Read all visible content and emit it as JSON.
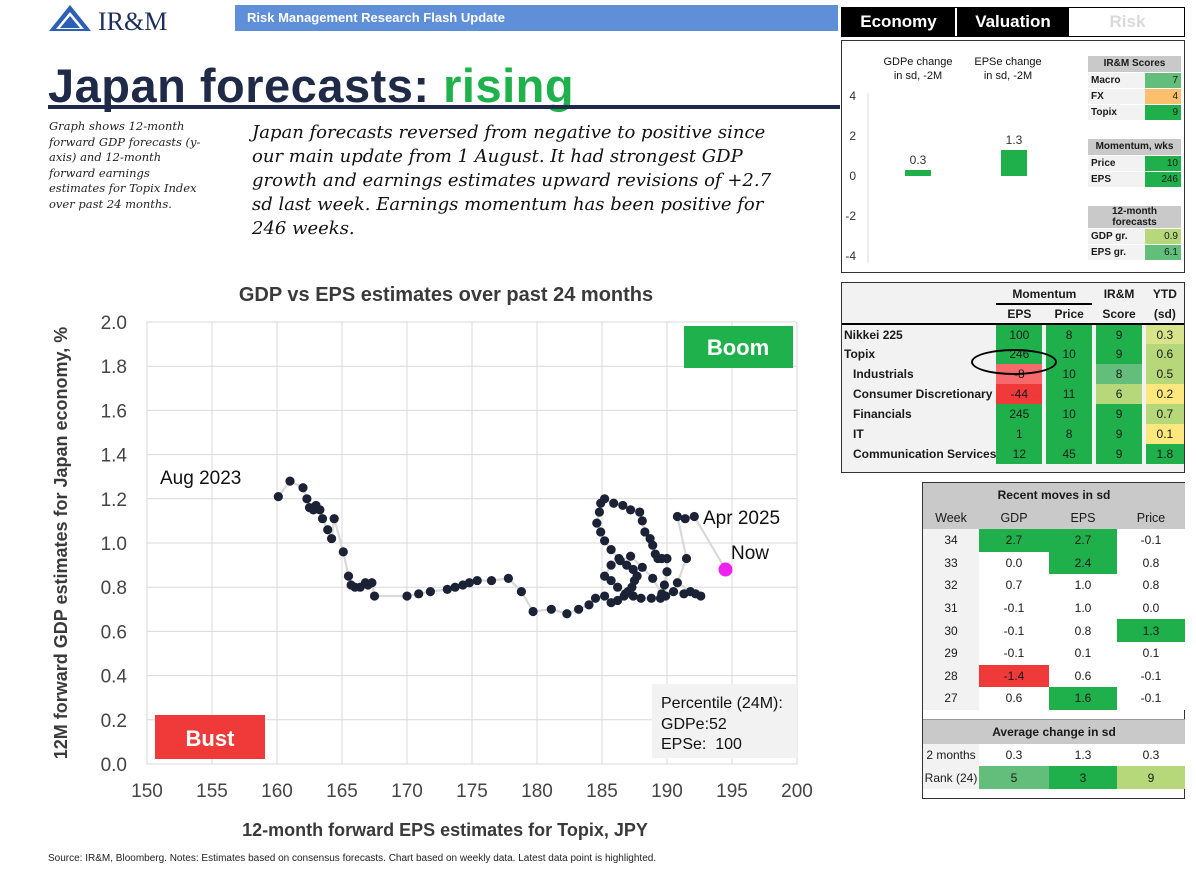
{
  "header": {
    "logo_text": "IR&M",
    "bar_text": "Risk Management Research Flash Update",
    "tabs": [
      "Economy",
      "Valuation",
      "Risk"
    ]
  },
  "title": {
    "main": "Japan forecasts: ",
    "highlight": "rising"
  },
  "side_note": "Graph shows 12-month forward GDP forecasts (y-axis) and 12-month forward earnings estimates for Topix Index over past 24 months.",
  "lead_text": "Japan forecasts reversed from negative to positive since our main update from 1 August. It had strongest GDP growth and earnings estimates upward revisions of +2.7 sd last week. Earnings momentum has been positive for 246 weeks.",
  "colors": {
    "navy": "#1f2a48",
    "green": "#1fb14b",
    "red": "#f03a3a",
    "dark_green": "#20b04b",
    "mid_green": "#63be7b",
    "light_green": "#b6d87a",
    "yellow": "#fde87e",
    "orange": "#fcbf6e",
    "point": "#1b2236",
    "latest": "#ee22ee",
    "tab_bg": "#000000"
  },
  "chart_data": {
    "type": "scatter",
    "title": "GDP vs EPS estimates over past 24 months",
    "xlabel": "12-month forward EPS estimates for Topix, JPY",
    "ylabel": "12M forward GDP estimates for Japan economy, %",
    "xlim": [
      150,
      200
    ],
    "ylim": [
      0.0,
      2.0
    ],
    "xticks": [
      "150",
      "155",
      "160",
      "165",
      "170",
      "175",
      "180",
      "185",
      "190",
      "195",
      "200"
    ],
    "yticks": [
      "0.0",
      "0.2",
      "0.4",
      "0.6",
      "0.8",
      "1.0",
      "1.2",
      "1.4",
      "1.6",
      "1.8",
      "2.0"
    ],
    "grid": true,
    "points": [
      [
        160.1,
        1.21
      ],
      [
        161.0,
        1.28
      ],
      [
        162.0,
        1.25
      ],
      [
        162.3,
        1.2
      ],
      [
        162.5,
        1.16
      ],
      [
        162.8,
        1.15
      ],
      [
        163.0,
        1.17
      ],
      [
        163.3,
        1.15
      ],
      [
        163.5,
        1.11
      ],
      [
        163.9,
        1.06
      ],
      [
        164.2,
        1.02
      ],
      [
        164.4,
        1.11
      ],
      [
        165.1,
        0.96
      ],
      [
        165.5,
        0.85
      ],
      [
        165.7,
        0.81
      ],
      [
        166.0,
        0.8
      ],
      [
        166.4,
        0.8
      ],
      [
        166.8,
        0.82
      ],
      [
        167.0,
        0.81
      ],
      [
        167.3,
        0.82
      ],
      [
        167.5,
        0.76
      ],
      [
        170.0,
        0.76
      ],
      [
        170.9,
        0.77
      ],
      [
        171.8,
        0.78
      ],
      [
        173.1,
        0.79
      ],
      [
        173.7,
        0.8
      ],
      [
        174.3,
        0.81
      ],
      [
        174.8,
        0.82
      ],
      [
        175.4,
        0.83
      ],
      [
        176.5,
        0.83
      ],
      [
        177.8,
        0.84
      ],
      [
        178.8,
        0.78
      ],
      [
        179.7,
        0.69
      ],
      [
        181.1,
        0.7
      ],
      [
        182.3,
        0.68
      ],
      [
        183.2,
        0.7
      ],
      [
        184.0,
        0.72
      ],
      [
        184.5,
        0.75
      ],
      [
        185.2,
        0.76
      ],
      [
        185.7,
        0.73
      ],
      [
        186.2,
        0.74
      ],
      [
        186.7,
        0.76
      ],
      [
        187.0,
        0.78
      ],
      [
        187.3,
        0.8
      ],
      [
        187.5,
        0.83
      ],
      [
        187.7,
        0.85
      ],
      [
        187.4,
        0.88
      ],
      [
        186.9,
        0.9
      ],
      [
        186.3,
        0.93
      ],
      [
        185.7,
        0.97
      ],
      [
        185.2,
        1.01
      ],
      [
        184.9,
        1.05
      ],
      [
        184.6,
        1.09
      ],
      [
        184.8,
        1.14
      ],
      [
        184.9,
        1.18
      ],
      [
        185.2,
        1.2
      ],
      [
        185.9,
        1.18
      ],
      [
        186.6,
        1.17
      ],
      [
        187.2,
        1.15
      ],
      [
        187.9,
        1.14
      ],
      [
        188.1,
        1.1
      ],
      [
        188.3,
        1.05
      ],
      [
        188.7,
        1.02
      ],
      [
        188.9,
        0.99
      ],
      [
        189.1,
        0.95
      ],
      [
        189.3,
        0.93
      ],
      [
        189.6,
        0.93
      ],
      [
        190.0,
        0.93
      ],
      [
        190.0,
        0.87
      ],
      [
        189.8,
        0.81
      ],
      [
        189.9,
        0.76
      ],
      [
        189.5,
        0.75
      ],
      [
        188.8,
        0.75
      ],
      [
        188.0,
        0.75
      ],
      [
        187.4,
        0.76
      ],
      [
        186.8,
        0.77
      ],
      [
        186.2,
        0.8
      ],
      [
        185.7,
        0.83
      ],
      [
        185.2,
        0.85
      ],
      [
        185.7,
        0.9
      ],
      [
        186.4,
        0.92
      ],
      [
        187.2,
        0.94
      ],
      [
        188.1,
        0.89
      ],
      [
        188.9,
        0.84
      ],
      [
        189.6,
        0.77
      ],
      [
        190.5,
        0.78
      ],
      [
        191.3,
        0.77
      ],
      [
        192.2,
        0.77
      ],
      [
        192.6,
        0.76
      ],
      [
        191.8,
        0.78
      ],
      [
        190.8,
        0.82
      ],
      [
        191.5,
        0.93
      ],
      [
        190.8,
        1.12
      ],
      [
        191.4,
        1.11
      ],
      [
        192.1,
        1.12
      ]
    ],
    "latest": [
      194.5,
      0.88
    ],
    "annotations": {
      "first": "Aug 2023",
      "apr": "Apr 2025",
      "now": "Now"
    },
    "quadrants": {
      "boom": "Boom",
      "bust": "Bust"
    },
    "percentile_box": [
      "Percentile (24M):",
      "GDPe:52",
      "EPSe:  100"
    ]
  },
  "scores": {
    "bar_labels": [
      "GDPe change in sd, -2M",
      "EPSe change in sd, -2M"
    ],
    "bar_values": [
      0.3,
      1.3
    ],
    "yticks": [
      "4",
      "2",
      "0",
      "-2",
      "-4"
    ],
    "irm_title": "IR&M Scores",
    "irm": [
      {
        "label": "Macro",
        "value": "7"
      },
      {
        "label": "FX",
        "value": "4"
      },
      {
        "label": "Topix",
        "value": "9"
      }
    ],
    "mom_title": "Momentum, wks",
    "mom": [
      {
        "label": "Price",
        "value": "10"
      },
      {
        "label": "EPS",
        "value": "246"
      }
    ],
    "fc_title": "12-month forecasts",
    "fc": [
      {
        "label": "GDP gr.",
        "value": "0.9"
      },
      {
        "label": "EPS gr.",
        "value": "6.1"
      }
    ]
  },
  "momentum_table": {
    "headers": {
      "momentum": "Momentum",
      "irm": "IR&M",
      "ytd": "YTD",
      "eps": "EPS",
      "price": "Price",
      "score": "Score",
      "sd": "(sd)"
    },
    "rows": [
      {
        "name": "Nikkei 225",
        "eps": "100",
        "price": "8",
        "score": "9",
        "ytd": "0.3",
        "sub": false
      },
      {
        "name": "Topix",
        "eps": "246",
        "price": "10",
        "score": "9",
        "ytd": "0.6",
        "sub": false
      },
      {
        "name": "Industrials",
        "eps": "-8",
        "price": "10",
        "score": "8",
        "ytd": "0.5",
        "sub": true
      },
      {
        "name": "Consumer Discretionary",
        "eps": "-44",
        "price": "11",
        "score": "6",
        "ytd": "0.2",
        "sub": true
      },
      {
        "name": "Financials",
        "eps": "245",
        "price": "10",
        "score": "9",
        "ytd": "0.7",
        "sub": true
      },
      {
        "name": "IT",
        "eps": "1",
        "price": "8",
        "score": "9",
        "ytd": "0.1",
        "sub": true
      },
      {
        "name": "Communication Services",
        "eps": "12",
        "price": "45",
        "score": "9",
        "ytd": "1.8",
        "sub": true
      }
    ]
  },
  "recent_moves": {
    "title": "Recent moves in sd",
    "columns": [
      "Week",
      "GDP",
      "EPS",
      "Price"
    ],
    "rows": [
      {
        "week": "34",
        "gdp": "2.7",
        "eps": "2.7",
        "price": "-0.1"
      },
      {
        "week": "33",
        "gdp": "0.0",
        "eps": "2.4",
        "price": "0.8"
      },
      {
        "week": "32",
        "gdp": "0.7",
        "eps": "1.0",
        "price": "0.8"
      },
      {
        "week": "31",
        "gdp": "-0.1",
        "eps": "1.0",
        "price": "0.0"
      },
      {
        "week": "30",
        "gdp": "-0.1",
        "eps": "0.8",
        "price": "1.3"
      },
      {
        "week": "29",
        "gdp": "-0.1",
        "eps": "0.1",
        "price": "0.1"
      },
      {
        "week": "28",
        "gdp": "-1.4",
        "eps": "0.6",
        "price": "-0.1"
      },
      {
        "week": "27",
        "gdp": "0.6",
        "eps": "1.6",
        "price": "-0.1"
      }
    ],
    "avg_title": "Average change in sd",
    "avg_rows": [
      {
        "label": "2 months",
        "gdp": "0.3",
        "eps": "1.3",
        "price": "0.3"
      },
      {
        "label": "Rank (24)",
        "gdp": "5",
        "eps": "3",
        "price": "9"
      }
    ]
  },
  "source": "Source: IR&M, Bloomberg. Notes: Estimates based on consensus forecasts. Chart based on weekly data. Latest data point is highlighted."
}
